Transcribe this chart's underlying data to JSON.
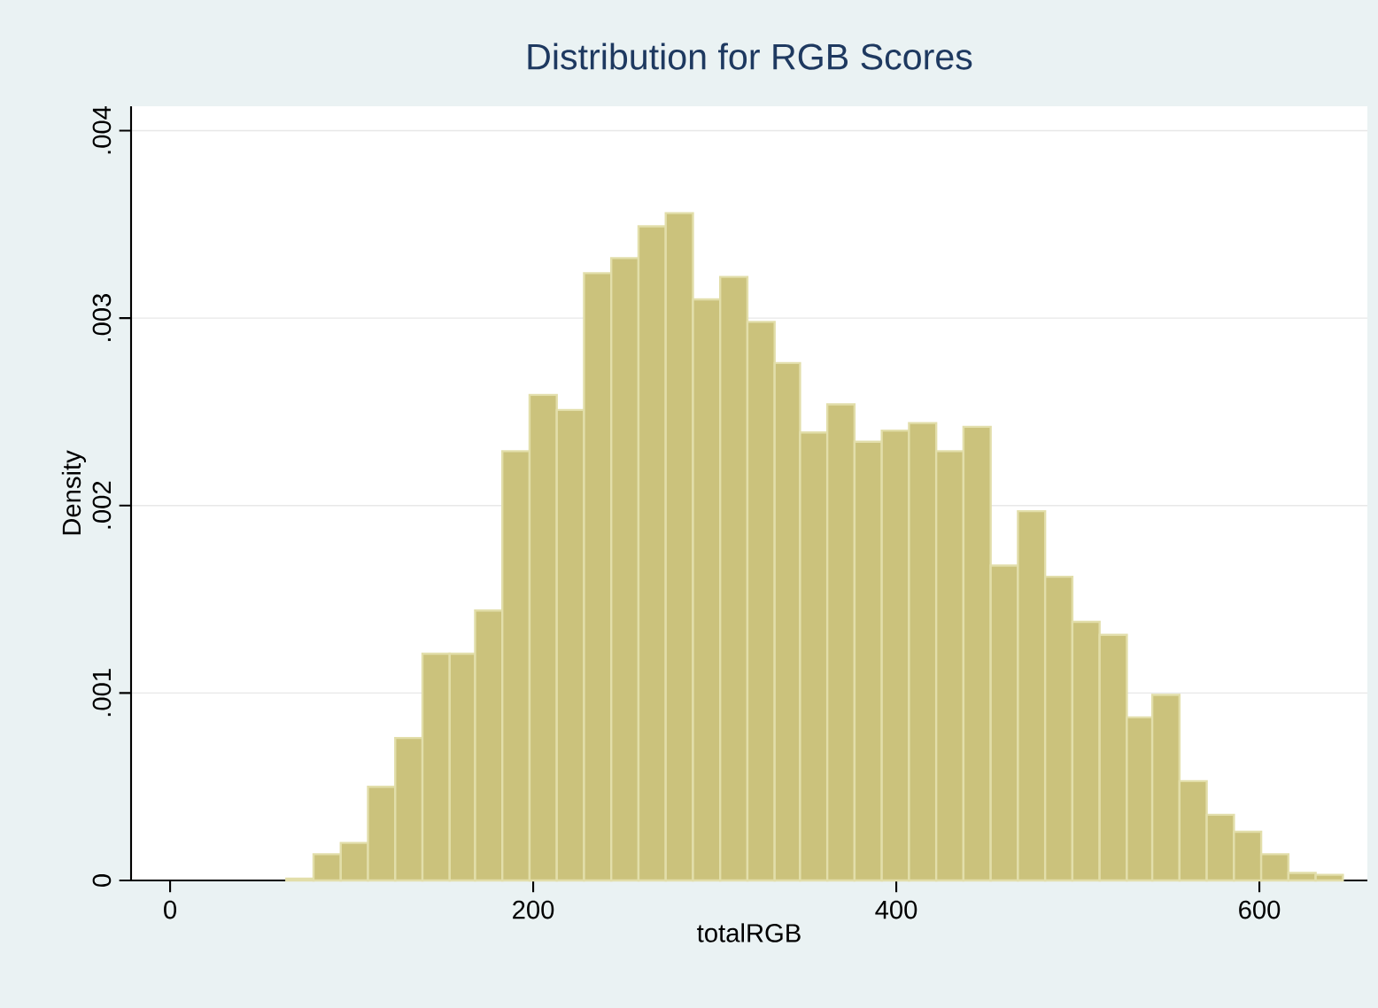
{
  "chart_data": {
    "type": "histogram",
    "title": "Distribution for RGB Scores",
    "xlabel": "totalRGB",
    "ylabel": "Density",
    "bins": [
      64,
      79,
      94,
      109,
      124,
      139,
      154,
      168,
      183,
      198,
      213,
      228,
      243,
      258,
      273,
      288,
      303,
      318,
      333,
      347,
      362,
      377,
      392,
      407,
      422,
      437,
      452,
      467,
      482,
      497,
      512,
      527,
      541,
      556,
      571,
      586,
      601,
      616,
      631,
      646
    ],
    "values": [
      1e-05,
      0.00014,
      0.0002,
      0.0005,
      0.00076,
      0.00121,
      0.00121,
      0.00144,
      0.00229,
      0.00259,
      0.00251,
      0.00324,
      0.00332,
      0.00349,
      0.00356,
      0.0031,
      0.00322,
      0.00298,
      0.00276,
      0.00239,
      0.00254,
      0.00234,
      0.0024,
      0.00244,
      0.00229,
      0.00242,
      0.00168,
      0.00197,
      0.00162,
      0.00138,
      0.00131,
      0.00087,
      0.00099,
      0.00053,
      0.00035,
      0.00026,
      0.00014,
      4e-05,
      3e-05
    ],
    "color": "#cbc27c",
    "xlim": [
      -21.5,
      659.5
    ],
    "ylim": [
      0,
      0.00413
    ],
    "xticks": [
      0,
      200,
      400,
      600
    ],
    "yticks": [
      0,
      {
        "value": 0.001,
        "label": ".001"
      },
      {
        "value": 0.002,
        "label": ".002"
      },
      {
        "value": 0.003,
        "label": ".003"
      },
      {
        "value": 0.004,
        "label": ".004"
      }
    ],
    "grid": "y"
  }
}
